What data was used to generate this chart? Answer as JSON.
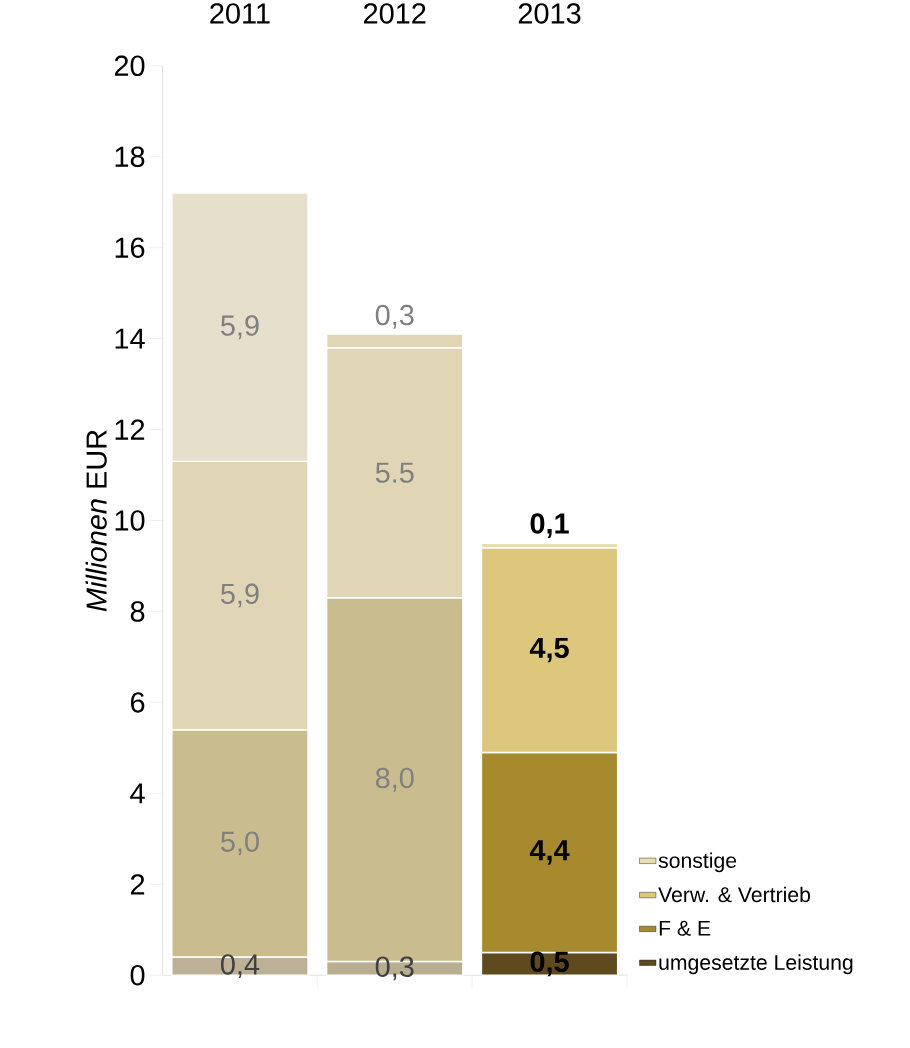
{
  "chart_data": {
    "type": "bar",
    "stacked": true,
    "ylabel": "*Millionen* EUR",
    "categories": [
      "2011",
      "2012",
      "2013"
    ],
    "series": [
      {
        "name": "umgesetzte Leistung",
        "color": "#5e4a1e",
        "colors": [
          "#bcb196",
          "#b8ad90",
          "#5e4a1e"
        ],
        "values": [
          0.4,
          0.3,
          0.5
        ],
        "value_labels": [
          "0,4",
          "0,3",
          "0,5"
        ]
      },
      {
        "name": "F & E",
        "color": "#a88a2e",
        "colors": [
          "#c9bd8f",
          "#c9bd8f",
          "#a88a2e"
        ],
        "values": [
          5.0,
          8.0,
          4.4
        ],
        "value_labels": [
          "5,0",
          "8,0",
          "4,4"
        ]
      },
      {
        "name": "Verw. & Vertrieb",
        "color": "#dcc77d",
        "colors": [
          "#e0d6b5",
          "#e0d6b5",
          "#dcc77d"
        ],
        "values": [
          5.9,
          5.5,
          4.5
        ],
        "value_labels": [
          "5,9",
          "5.5",
          "4,5"
        ]
      },
      {
        "name": "sonstige",
        "color": "#e8dcb0",
        "colors": [
          "#e6dfcb",
          "#e0d6b5",
          "#e8dcb0"
        ],
        "values": [
          5.9,
          0.3,
          0.1
        ],
        "value_labels": [
          "5,9",
          "0,3",
          "0,1"
        ]
      }
    ],
    "ylim": [
      0,
      20
    ],
    "yticks": [
      0,
      2,
      4,
      6,
      8,
      10,
      12,
      14,
      16,
      18,
      20
    ],
    "legend": "bottom right"
  }
}
